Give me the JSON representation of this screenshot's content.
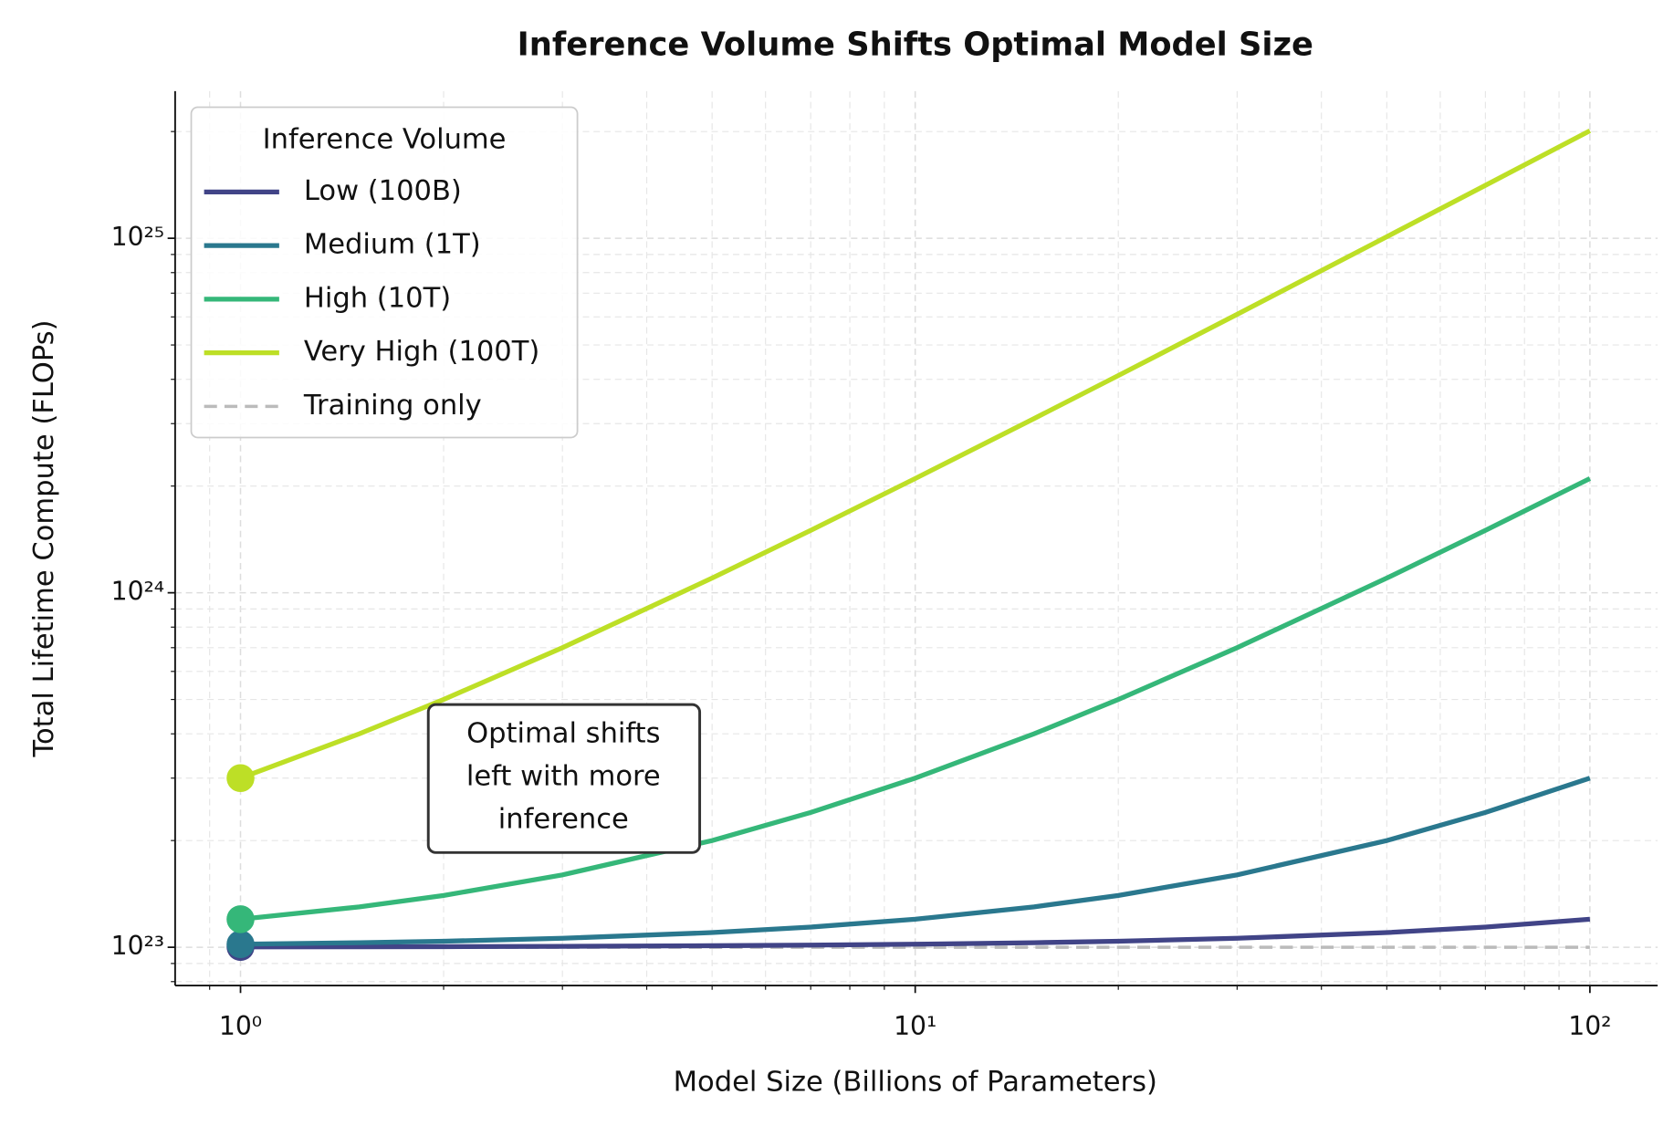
{
  "chart_data": {
    "type": "line",
    "title": "Inference Volume Shifts Optimal Model Size",
    "x_label": "Model Size (Billions of Parameters)",
    "y_label": "Total Lifetime Compute (FLOPs)",
    "x_scale": "log",
    "y_scale": "log",
    "grid": true,
    "legend_title": "Inference Volume",
    "legend": "upper left",
    "annotation": [
      "Optimal shifts",
      "left with more",
      "inference"
    ],
    "x": [
      1,
      1.5,
      2,
      3,
      5,
      7,
      10,
      15,
      20,
      30,
      50,
      70,
      100
    ],
    "series": [
      {
        "name": "Low (100B)",
        "color": "#414487",
        "values": [
          1.002e+23,
          1.003e+23,
          1.004e+23,
          1.006e+23,
          1.01e+23,
          1.014e+23,
          1.02e+23,
          1.03e+23,
          1.04e+23,
          1.06e+23,
          1.1e+23,
          1.14e+23,
          1.2e+23
        ]
      },
      {
        "name": "Medium (1T)",
        "color": "#2a788e",
        "values": [
          1.02e+23,
          1.03e+23,
          1.04e+23,
          1.06e+23,
          1.1e+23,
          1.14e+23,
          1.2e+23,
          1.3e+23,
          1.4e+23,
          1.6e+23,
          2e+23,
          2.4e+23,
          3e+23
        ]
      },
      {
        "name": "High (10T)",
        "color": "#35b779",
        "values": [
          1.2e+23,
          1.3e+23,
          1.4e+23,
          1.6e+23,
          2e+23,
          2.4e+23,
          3e+23,
          4e+23,
          5e+23,
          7e+23,
          1.1e+24,
          1.5e+24,
          2.1e+24
        ]
      },
      {
        "name": "Very High (100T)",
        "color": "#bddf26",
        "values": [
          3e+23,
          4e+23,
          5e+23,
          7e+23,
          1.1e+24,
          1.5e+24,
          2.1e+24,
          3.1e+24,
          4.1e+24,
          6.1e+24,
          1.01e+25,
          1.41e+25,
          2.01e+25
        ]
      },
      {
        "name": "Training only",
        "color": "#bbbbbb",
        "dashed": true,
        "values": [
          1e+23,
          1e+23,
          1e+23,
          1e+23,
          1e+23,
          1e+23,
          1e+23,
          1e+23,
          1e+23,
          1e+23,
          1e+23,
          1e+23,
          1e+23
        ]
      }
    ],
    "xlim": [
      0.8,
      126
    ],
    "ylim": [
      7.8e+22,
      2.6e+25
    ],
    "xticks": [
      {
        "value": 1,
        "label": "10⁰"
      },
      {
        "value": 10,
        "label": "10¹"
      },
      {
        "value": 100,
        "label": "10²"
      }
    ],
    "yticks": [
      {
        "value": 1e+23,
        "label": "10²³"
      },
      {
        "value": 1e+24,
        "label": "10²⁴"
      },
      {
        "value": 1e+25,
        "label": "10²⁵"
      }
    ],
    "xminorticks": [
      0.9,
      2,
      3,
      4,
      5,
      6,
      7,
      8,
      9,
      20,
      30,
      40,
      50,
      60,
      70,
      80,
      90
    ],
    "yminorticks": [
      8e+22,
      9e+22,
      2e+23,
      3e+23,
      4e+23,
      5e+23,
      6e+23,
      7e+23,
      8e+23,
      9e+23,
      2e+24,
      3e+24,
      4e+24,
      5e+24,
      6e+24,
      7e+24,
      8e+24,
      9e+24,
      2e+25
    ]
  }
}
